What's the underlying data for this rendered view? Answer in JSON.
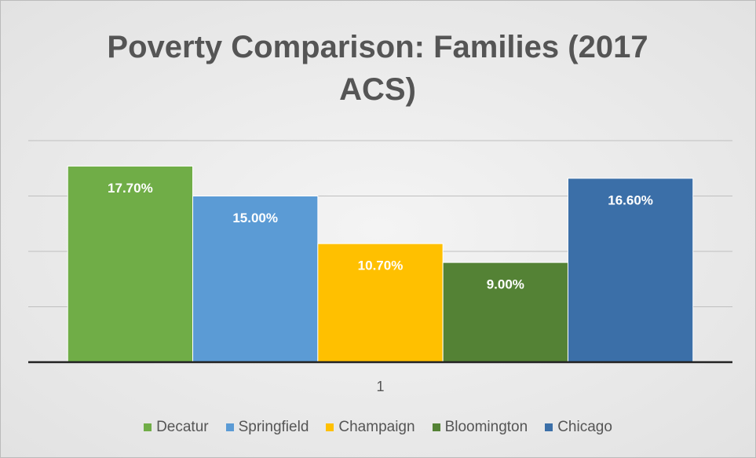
{
  "chart_data": {
    "type": "bar",
    "title": "Poverty Comparison: Families (2017 ACS)",
    "categories": [
      "1"
    ],
    "series": [
      {
        "name": "Decatur",
        "color": "#70ad47",
        "values": [
          17.7
        ],
        "value_labels": [
          "17.70%"
        ]
      },
      {
        "name": "Springfield",
        "color": "#5b9bd5",
        "values": [
          15.0
        ],
        "value_labels": [
          "15.00%"
        ]
      },
      {
        "name": "Champaign",
        "color": "#ffc000",
        "values": [
          10.7
        ],
        "value_labels": [
          "10.70%"
        ]
      },
      {
        "name": "Bloomington",
        "color": "#548235",
        "values": [
          9.0
        ],
        "value_labels": [
          "9.00%"
        ]
      },
      {
        "name": "Chicago",
        "color": "#3b6fa8",
        "values": [
          16.6
        ],
        "value_labels": [
          "16.60%"
        ]
      }
    ],
    "ylim": [
      0,
      20
    ],
    "yticks": [
      0,
      5,
      10,
      15,
      20
    ],
    "grid": true,
    "legend": "bottom"
  }
}
